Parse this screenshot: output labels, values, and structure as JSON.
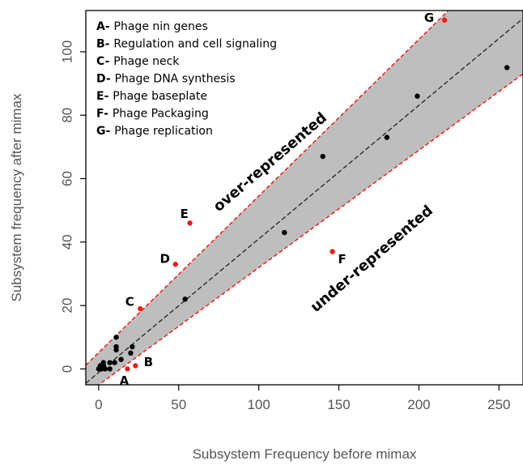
{
  "chart_data": {
    "type": "scatter",
    "xlabel": "Subsystem Frequency before mimax",
    "ylabel": "Subsystem frequency after mimax",
    "xlim": [
      -8,
      265
    ],
    "ylim": [
      -5,
      113
    ],
    "x_ticks": [
      0,
      50,
      100,
      150,
      200,
      250
    ],
    "y_ticks": [
      0,
      20,
      40,
      60,
      80,
      100
    ],
    "x_tick_labels": [
      "0",
      "50",
      "100",
      "150",
      "200",
      "250"
    ],
    "y_tick_labels": [
      "0",
      "20",
      "40",
      "60",
      "80",
      "100"
    ],
    "grid": false,
    "legend_position": "top-left",
    "legend": [
      {
        "key": "A-",
        "text": "Phage nin genes"
      },
      {
        "key": "B-",
        "text": "Regulation and cell signaling"
      },
      {
        "key": "C-",
        "text": "Phage neck"
      },
      {
        "key": "D-",
        "text": "Phage DNA synthesis"
      },
      {
        "key": "E-",
        "text": "Phage baseplate"
      },
      {
        "key": "F-",
        "text": "Phage Packaging"
      },
      {
        "key": "G-",
        "text": "Phage replication"
      }
    ],
    "annotations": {
      "over": "over-represented",
      "under": "under-represented"
    },
    "band": {
      "center_line": {
        "x": [
          -8,
          265
        ],
        "y": [
          -4.5,
          110.5
        ]
      },
      "upper_line": {
        "x": [
          -8,
          265
        ],
        "y": [
          1.2,
          136
        ]
      },
      "lower_line": {
        "x": [
          -8,
          265
        ],
        "y": [
          -8,
          93
        ]
      }
    },
    "series": [
      {
        "color": "#000000",
        "points": [
          {
            "x": 0,
            "y": 0
          },
          {
            "x": 1,
            "y": 1
          },
          {
            "x": 2,
            "y": 0
          },
          {
            "x": 3,
            "y": 1
          },
          {
            "x": 3,
            "y": 2
          },
          {
            "x": 4,
            "y": 0
          },
          {
            "x": 7,
            "y": 0
          },
          {
            "x": 7,
            "y": 2
          },
          {
            "x": 10,
            "y": 2
          },
          {
            "x": 11,
            "y": 6
          },
          {
            "x": 11,
            "y": 7
          },
          {
            "x": 11,
            "y": 10
          },
          {
            "x": 14,
            "y": 3
          },
          {
            "x": 20,
            "y": 5
          },
          {
            "x": 21,
            "y": 7
          },
          {
            "x": 54,
            "y": 22
          },
          {
            "x": 116,
            "y": 43
          },
          {
            "x": 140,
            "y": 67
          },
          {
            "x": 180,
            "y": 73
          },
          {
            "x": 199,
            "y": 86
          },
          {
            "x": 255,
            "y": 95
          }
        ]
      },
      {
        "color": "#e8201a",
        "points": [
          {
            "x": 18,
            "y": 0,
            "label": "A"
          },
          {
            "x": 23,
            "y": 1,
            "label": "B"
          },
          {
            "x": 26,
            "y": 19,
            "label": "C"
          },
          {
            "x": 48,
            "y": 33,
            "label": "D"
          },
          {
            "x": 57,
            "y": 46,
            "label": "E"
          },
          {
            "x": 146,
            "y": 37,
            "label": "F"
          },
          {
            "x": 216,
            "y": 110,
            "label": "G"
          }
        ]
      }
    ]
  }
}
